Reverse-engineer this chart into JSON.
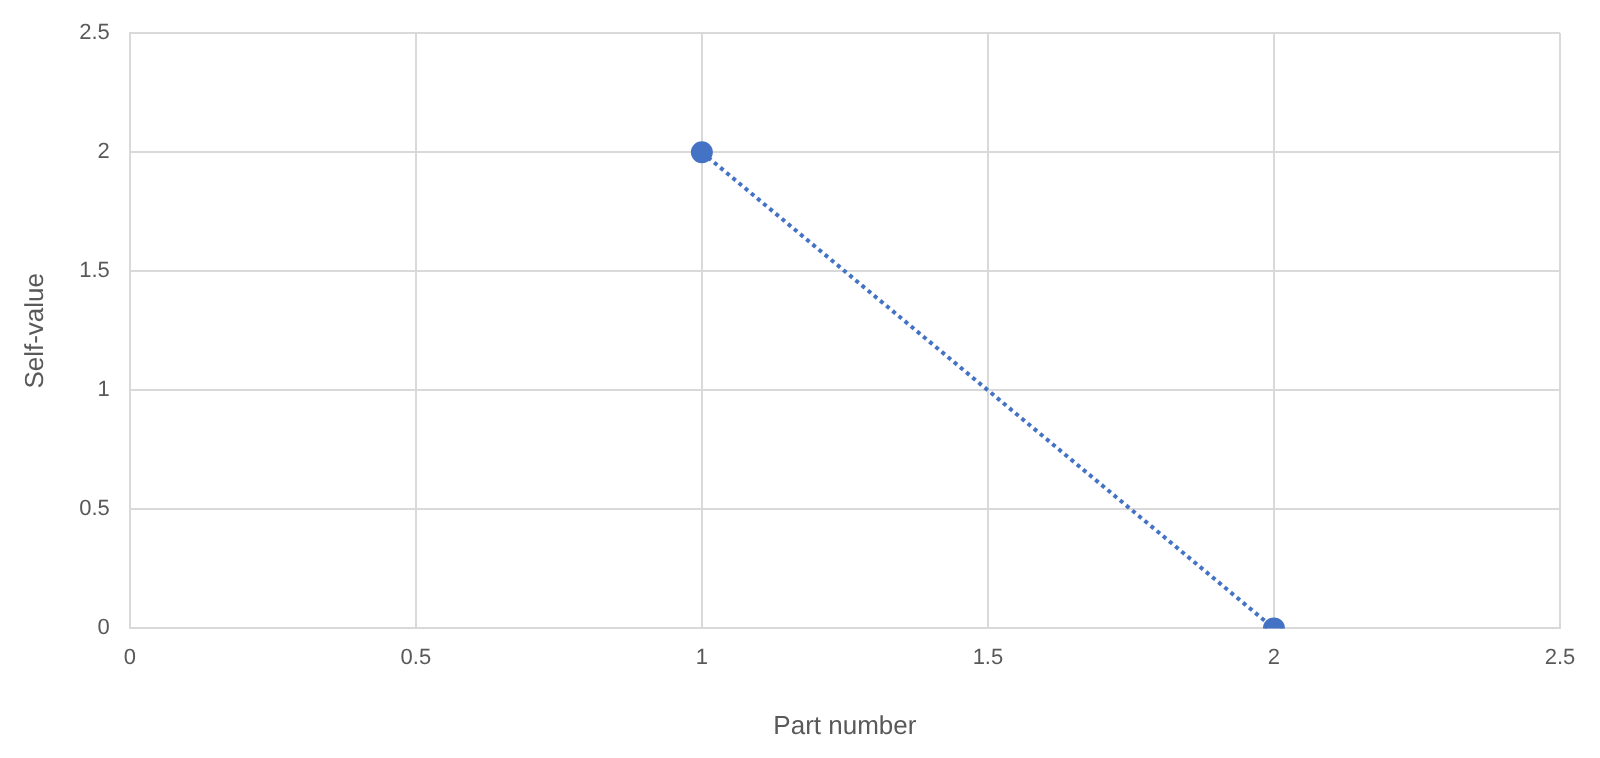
{
  "chart_data": {
    "type": "line",
    "xlabel": "Part number",
    "ylabel": "Self-value",
    "x": [
      1,
      2
    ],
    "series": [
      {
        "color": "#4472c4",
        "values": [
          2,
          0
        ]
      }
    ],
    "xlim": [
      0,
      2.5
    ],
    "xticks": [
      0,
      0.5,
      1,
      1.5,
      2,
      2.5
    ],
    "ylim": [
      0,
      2.5
    ],
    "yticks": [
      0,
      0.5,
      1,
      1.5,
      2,
      2.5
    ],
    "grid": true,
    "legend": false,
    "marker": "circle",
    "line_style": "dotted"
  }
}
